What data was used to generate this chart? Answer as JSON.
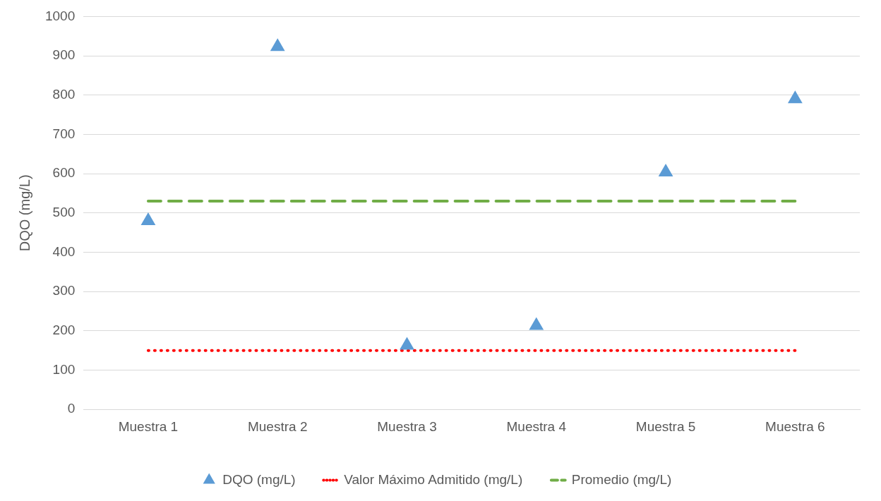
{
  "chart_data": {
    "type": "line",
    "ylabel": "DQO (mg/L)",
    "categories": [
      "Muestra 1",
      "Muestra 2",
      "Muestra 3",
      "Muestra 4",
      "Muestra 5",
      "Muestra 6"
    ],
    "series": [
      {
        "name": "DQO (mg/L)",
        "type": "scatter",
        "marker": "triangle",
        "color": "#5b9bd5",
        "values": [
          480,
          923,
          163,
          213,
          604,
          790
        ]
      },
      {
        "name": "Valor Máximo Admitido (mg/L)",
        "marker": "none",
        "line_style": "dotted",
        "color": "#ff0000",
        "values": [
          150,
          150,
          150,
          150,
          150,
          150
        ]
      },
      {
        "name": "Promedio (mg/L)",
        "marker": "none",
        "line_style": "dashed",
        "color": "#70ad47",
        "values": [
          530,
          530,
          530,
          530,
          530,
          530
        ]
      }
    ],
    "ylim": [
      0,
      1000
    ],
    "yticks": [
      0,
      100,
      200,
      300,
      400,
      500,
      600,
      700,
      800,
      900,
      1000
    ],
    "grid": "y",
    "legend": "bottom"
  }
}
